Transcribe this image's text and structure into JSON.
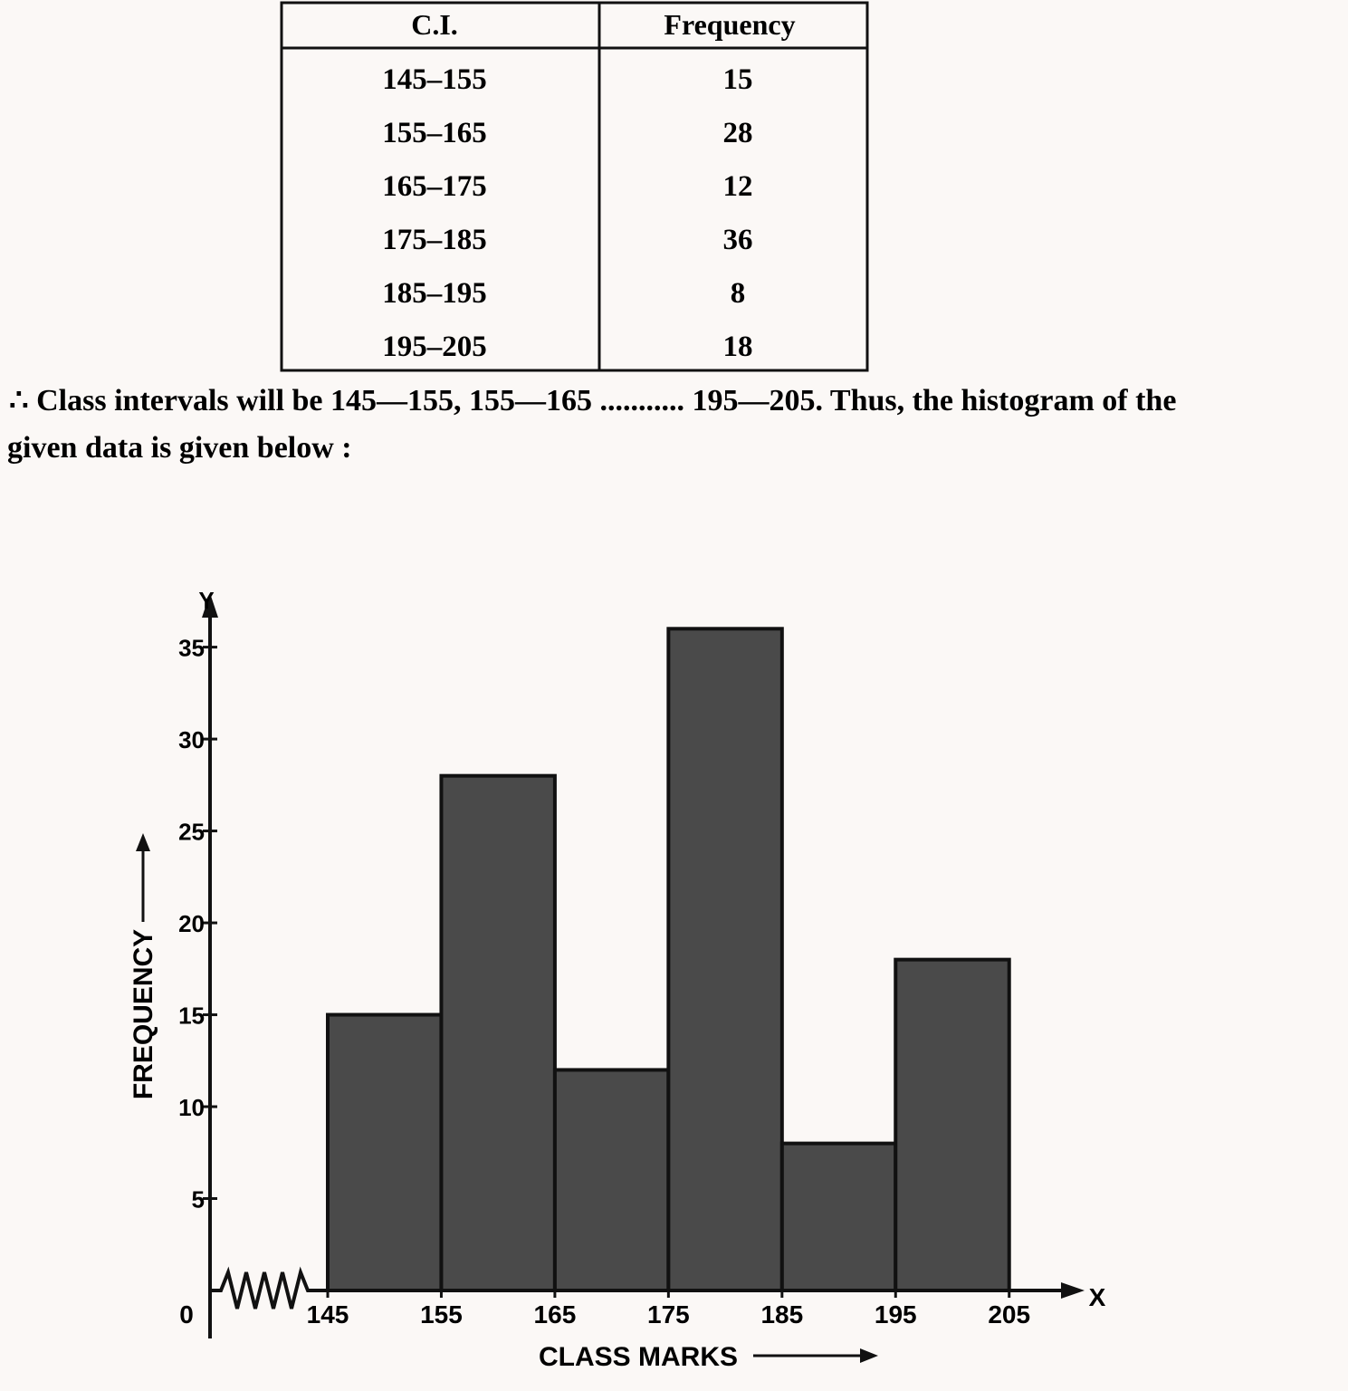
{
  "table": {
    "header": [
      "C.I.",
      "Frequency"
    ],
    "rows": [
      [
        "145–155",
        "15"
      ],
      [
        "155–165",
        "28"
      ],
      [
        "165–175",
        "12"
      ],
      [
        "175–185",
        "36"
      ],
      [
        "185–195",
        "8"
      ],
      [
        "195–205",
        "18"
      ]
    ]
  },
  "text": {
    "lines": [
      "∴ Class intervals will be 145—155, 155—165 ........... 195—205. Thus, the histogram of the",
      "given data is given below :"
    ]
  },
  "chart_data": {
    "type": "histogram",
    "bins": [
      145,
      155,
      165,
      175,
      185,
      195,
      205
    ],
    "values": [
      15,
      28,
      12,
      36,
      8,
      18
    ],
    "color": "#4a4a4a",
    "xlim": [
      145,
      211
    ],
    "ylim": [
      0,
      37
    ],
    "xticks": [
      145,
      155,
      165,
      175,
      185,
      195,
      205
    ],
    "yticks": [
      0,
      5,
      10,
      15,
      20,
      25,
      30,
      35
    ],
    "xlabel": "CLASS MARKS",
    "ylabel": "FREQUENCY",
    "x_axis_name": "X",
    "y_axis_name": "Y"
  }
}
